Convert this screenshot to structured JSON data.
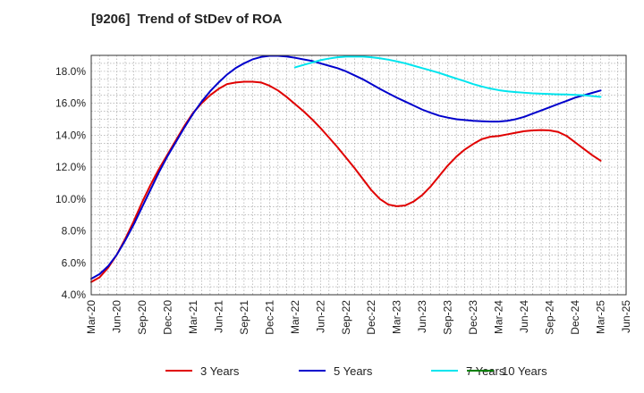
{
  "chart_data": {
    "type": "line",
    "title": "[9206]  Trend of StDev of ROA",
    "xlabel": "",
    "ylabel": "",
    "ylim": [
      4.0,
      19.0
    ],
    "y_ticks": [
      "4.0%",
      "6.0%",
      "8.0%",
      "10.0%",
      "12.0%",
      "14.0%",
      "16.0%",
      "18.0%"
    ],
    "y_tick_values": [
      4,
      6,
      8,
      10,
      12,
      14,
      16,
      18
    ],
    "x_ticks": [
      "Mar-20",
      "Jun-20",
      "Sep-20",
      "Dec-20",
      "Mar-21",
      "Jun-21",
      "Sep-21",
      "Dec-21",
      "Mar-22",
      "Jun-22",
      "Sep-22",
      "Dec-22",
      "Mar-23",
      "Jun-23",
      "Sep-23",
      "Dec-23",
      "Mar-24",
      "Jun-24",
      "Sep-24",
      "Dec-24",
      "Mar-25",
      "Jun-25"
    ],
    "grid": true,
    "legend_position": "bottom",
    "series": [
      {
        "name": "3 Years",
        "color": "#e00000",
        "x": [
          "Mar-20",
          "Apr-20",
          "May-20",
          "Jun-20",
          "Jul-20",
          "Aug-20",
          "Sep-20",
          "Oct-20",
          "Nov-20",
          "Dec-20",
          "Jan-21",
          "Feb-21",
          "Mar-21",
          "Apr-21",
          "May-21",
          "Jun-21",
          "Jul-21",
          "Aug-21",
          "Sep-21",
          "Oct-21",
          "Nov-21",
          "Dec-21",
          "Jan-22",
          "Feb-22",
          "Mar-22",
          "Apr-22",
          "May-22",
          "Jun-22",
          "Jul-22",
          "Aug-22",
          "Sep-22",
          "Oct-22",
          "Nov-22",
          "Dec-22",
          "Jan-23",
          "Feb-23",
          "Mar-23",
          "Apr-23",
          "May-23",
          "Jun-23",
          "Jul-23",
          "Aug-23",
          "Sep-23",
          "Oct-23",
          "Nov-23",
          "Dec-23",
          "Jan-24",
          "Feb-24",
          "Mar-24",
          "Apr-24",
          "May-24",
          "Jun-24",
          "Jul-24",
          "Aug-24",
          "Sep-24",
          "Oct-24",
          "Nov-24",
          "Dec-24",
          "Jan-25",
          "Feb-25",
          "Mar-25"
        ],
        "values": [
          4.8,
          5.1,
          5.7,
          6.5,
          7.5,
          8.6,
          9.8,
          10.9,
          11.9,
          12.8,
          13.7,
          14.6,
          15.4,
          16.0,
          16.5,
          16.9,
          17.2,
          17.3,
          17.35,
          17.35,
          17.3,
          17.1,
          16.8,
          16.4,
          15.95,
          15.5,
          15.0,
          14.45,
          13.85,
          13.25,
          12.6,
          11.95,
          11.25,
          10.55,
          10.0,
          9.65,
          9.55,
          9.6,
          9.85,
          10.25,
          10.8,
          11.45,
          12.1,
          12.65,
          13.1,
          13.45,
          13.75,
          13.9,
          13.95,
          14.05,
          14.15,
          14.25,
          14.3,
          14.32,
          14.3,
          14.2,
          13.95,
          13.55,
          13.15,
          12.75,
          12.4
        ]
      },
      {
        "name": "5 Years",
        "color": "#0000cc",
        "x": [
          "Mar-20",
          "Apr-20",
          "May-20",
          "Jun-20",
          "Jul-20",
          "Aug-20",
          "Sep-20",
          "Oct-20",
          "Nov-20",
          "Dec-20",
          "Jan-21",
          "Feb-21",
          "Mar-21",
          "Apr-21",
          "May-21",
          "Jun-21",
          "Jul-21",
          "Aug-21",
          "Sep-21",
          "Oct-21",
          "Nov-21",
          "Dec-21",
          "Jan-22",
          "Feb-22",
          "Mar-22",
          "Apr-22",
          "May-22",
          "Jun-22",
          "Jul-22",
          "Aug-22",
          "Sep-22",
          "Oct-22",
          "Nov-22",
          "Dec-22",
          "Jan-23",
          "Feb-23",
          "Mar-23",
          "Apr-23",
          "May-23",
          "Jun-23",
          "Jul-23",
          "Aug-23",
          "Sep-23",
          "Oct-23",
          "Nov-23",
          "Dec-23",
          "Jan-24",
          "Feb-24",
          "Mar-24",
          "Apr-24",
          "May-24",
          "Jun-24",
          "Jul-24",
          "Aug-24",
          "Sep-24",
          "Oct-24",
          "Nov-24",
          "Dec-24",
          "Jan-25",
          "Feb-25",
          "Mar-25"
        ],
        "values": [
          5.0,
          5.3,
          5.8,
          6.5,
          7.4,
          8.4,
          9.5,
          10.6,
          11.7,
          12.7,
          13.6,
          14.5,
          15.35,
          16.1,
          16.75,
          17.3,
          17.8,
          18.2,
          18.5,
          18.75,
          18.9,
          18.97,
          18.97,
          18.93,
          18.85,
          18.75,
          18.65,
          18.5,
          18.35,
          18.2,
          18.0,
          17.75,
          17.5,
          17.2,
          16.9,
          16.62,
          16.35,
          16.1,
          15.85,
          15.6,
          15.4,
          15.22,
          15.1,
          15.0,
          14.95,
          14.9,
          14.87,
          14.85,
          14.85,
          14.9,
          15.0,
          15.15,
          15.35,
          15.55,
          15.75,
          15.95,
          16.15,
          16.35,
          16.5,
          16.65,
          16.8
        ]
      },
      {
        "name": "7 Years",
        "color": "#00e5ee",
        "x": [
          "Mar-22",
          "Apr-22",
          "May-22",
          "Jun-22",
          "Jul-22",
          "Aug-22",
          "Sep-22",
          "Oct-22",
          "Nov-22",
          "Dec-22",
          "Jan-23",
          "Feb-23",
          "Mar-23",
          "Apr-23",
          "May-23",
          "Jun-23",
          "Jul-23",
          "Aug-23",
          "Sep-23",
          "Oct-23",
          "Nov-23",
          "Dec-23",
          "Jan-24",
          "Feb-24",
          "Mar-24",
          "Apr-24",
          "May-24",
          "Jun-24",
          "Jul-24",
          "Aug-24",
          "Sep-24",
          "Oct-24",
          "Nov-24",
          "Dec-24",
          "Jan-25",
          "Feb-25",
          "Mar-25"
        ],
        "values": [
          18.25,
          18.4,
          18.55,
          18.7,
          18.8,
          18.88,
          18.92,
          18.93,
          18.92,
          18.88,
          18.82,
          18.73,
          18.62,
          18.5,
          18.35,
          18.2,
          18.05,
          17.9,
          17.72,
          17.55,
          17.38,
          17.2,
          17.05,
          16.92,
          16.82,
          16.75,
          16.7,
          16.66,
          16.62,
          16.6,
          16.58,
          16.56,
          16.55,
          16.52,
          16.5,
          16.45,
          16.4
        ]
      },
      {
        "name": "10 Years",
        "color": "#008000",
        "x": [],
        "values": []
      }
    ]
  }
}
